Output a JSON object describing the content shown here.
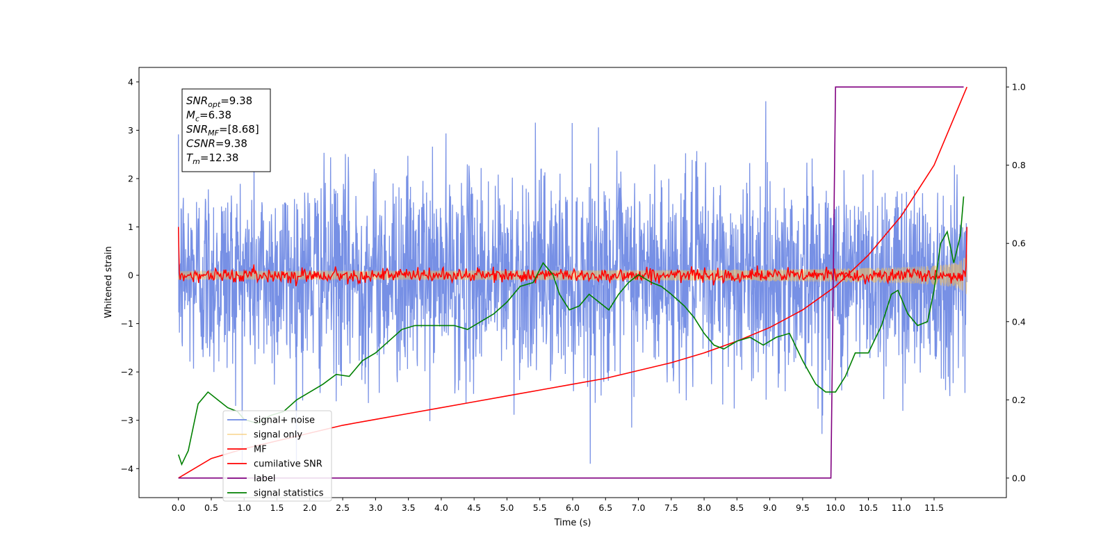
{
  "chart_data": {
    "type": "line",
    "xlabel": "Time (s)",
    "ylabel": "Whitened strain",
    "xlim": [
      -0.6,
      12.6
    ],
    "ylim": [
      -4.6,
      4.3
    ],
    "y2lim": [
      -0.05,
      1.05
    ],
    "grid": false,
    "legend_position": "lower-left",
    "x_ticks": [
      "0.0",
      "0.5",
      "1.0",
      "1.5",
      "2.0",
      "2.5",
      "3.0",
      "3.5",
      "4.0",
      "4.5",
      "5.0",
      "5.5",
      "6.0",
      "6.5",
      "7.0",
      "7.5",
      "8.0",
      "8.5",
      "9.0",
      "9.5",
      "10.0",
      "10.5",
      "11.0",
      "11.5"
    ],
    "y_ticks": [
      "−4",
      "−3",
      "−2",
      "−1",
      "0",
      "1",
      "2",
      "3",
      "4"
    ],
    "y2_ticks": [
      "0.0",
      "0.2",
      "0.4",
      "0.6",
      "0.8",
      "1.0"
    ],
    "annotation": [
      {
        "base": "SNR",
        "sub": "opt",
        "value": "=9.38"
      },
      {
        "base": "M",
        "sub": "c",
        "value": "=6.38"
      },
      {
        "base": "SNR",
        "sub": "MF",
        "value": "=[8.68]"
      },
      {
        "base": "CSNR",
        "sub": "",
        "value": "=9.38"
      },
      {
        "base": "T",
        "sub": "m",
        "value": "=12.38"
      }
    ],
    "series": [
      {
        "name": "signal+ noise",
        "color": "#6b87e3",
        "axis": "left",
        "kind": "noise",
        "x_range": [
          0.0,
          12.0
        ],
        "std": 1.05
      },
      {
        "name": "signal only",
        "color": "#f5c05a",
        "axis": "left",
        "kind": "chirp",
        "x_range": [
          0.0,
          12.0
        ]
      },
      {
        "name": "MF",
        "color": "#ff0000",
        "axis": "left",
        "kind": "noise",
        "x_range": [
          0.0,
          12.0
        ],
        "std": 0.07
      },
      {
        "name": "cumilative SNR",
        "color": "#ff0000",
        "axis": "right",
        "x": [
          0.0,
          0.5,
          1.0,
          1.5,
          2.0,
          2.5,
          3.0,
          3.5,
          4.0,
          4.5,
          5.0,
          5.5,
          6.0,
          6.5,
          7.0,
          7.5,
          8.0,
          8.5,
          9.0,
          9.5,
          10.0,
          10.5,
          11.0,
          11.5,
          12.0
        ],
        "y": [
          0.0,
          0.05,
          0.075,
          0.095,
          0.115,
          0.135,
          0.15,
          0.165,
          0.18,
          0.195,
          0.21,
          0.225,
          0.24,
          0.255,
          0.275,
          0.295,
          0.32,
          0.35,
          0.385,
          0.43,
          0.49,
          0.57,
          0.67,
          0.8,
          1.0
        ]
      },
      {
        "name": "label",
        "color": "#800080",
        "axis": "right",
        "x": [
          0.0,
          9.93,
          10.0,
          11.95
        ],
        "y": [
          0.0,
          0.0,
          1.0,
          1.0
        ]
      },
      {
        "name": "signal statistics",
        "color": "#008000",
        "axis": "right",
        "x": [
          0.0,
          0.05,
          0.15,
          0.3,
          0.45,
          0.6,
          0.75,
          0.9,
          1.0,
          1.2,
          1.4,
          1.6,
          1.8,
          2.0,
          2.2,
          2.4,
          2.6,
          2.8,
          3.0,
          3.2,
          3.4,
          3.6,
          3.8,
          4.0,
          4.2,
          4.4,
          4.6,
          4.8,
          5.0,
          5.2,
          5.4,
          5.55,
          5.7,
          5.8,
          5.95,
          6.1,
          6.25,
          6.4,
          6.55,
          6.7,
          6.85,
          7.0,
          7.2,
          7.35,
          7.5,
          7.7,
          7.85,
          8.0,
          8.15,
          8.3,
          8.5,
          8.7,
          8.9,
          9.1,
          9.3,
          9.5,
          9.7,
          9.85,
          10.0,
          10.15,
          10.3,
          10.5,
          10.7,
          10.85,
          10.95,
          11.1,
          11.25,
          11.4,
          11.5,
          11.6,
          11.7,
          11.8,
          11.9,
          11.95
        ],
        "y": [
          0.06,
          0.035,
          0.07,
          0.19,
          0.22,
          0.2,
          0.18,
          0.17,
          0.15,
          0.14,
          0.16,
          0.17,
          0.2,
          0.22,
          0.24,
          0.265,
          0.26,
          0.3,
          0.32,
          0.35,
          0.38,
          0.39,
          0.39,
          0.39,
          0.39,
          0.38,
          0.4,
          0.42,
          0.45,
          0.49,
          0.5,
          0.55,
          0.52,
          0.47,
          0.43,
          0.44,
          0.47,
          0.45,
          0.43,
          0.47,
          0.5,
          0.52,
          0.5,
          0.49,
          0.47,
          0.44,
          0.41,
          0.37,
          0.34,
          0.33,
          0.35,
          0.36,
          0.34,
          0.36,
          0.37,
          0.3,
          0.24,
          0.22,
          0.22,
          0.26,
          0.32,
          0.32,
          0.39,
          0.47,
          0.48,
          0.42,
          0.39,
          0.4,
          0.48,
          0.6,
          0.63,
          0.55,
          0.62,
          0.72
        ]
      }
    ]
  }
}
